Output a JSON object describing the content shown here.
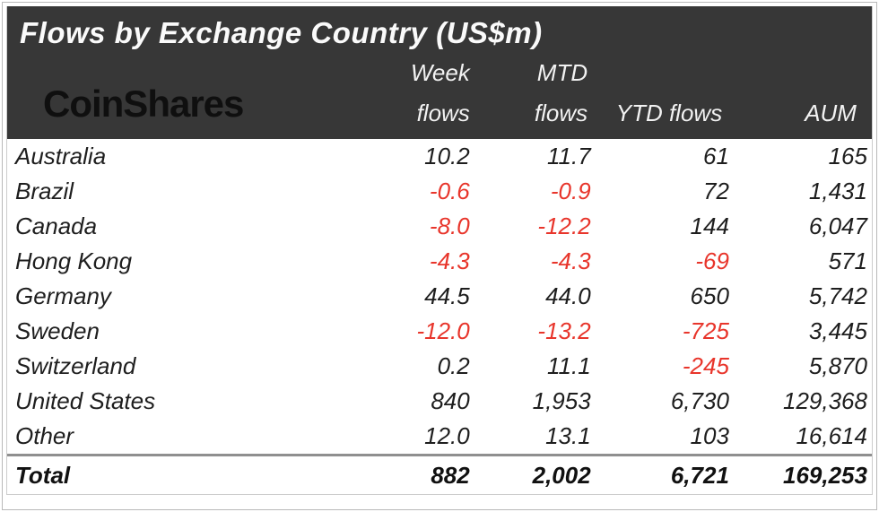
{
  "meta": {
    "title": "Flows by Exchange Country (US$m)",
    "brand": "CoinShares"
  },
  "colors": {
    "header_bg": "#373737",
    "header_text": "#fafafa",
    "logo_text": "#0f0f0f",
    "body_text": "#1e1e1e",
    "negative_text": "#e8352b",
    "total_divider": "#8f8f8f",
    "frame_border": "#b9b9b9"
  },
  "columns": [
    {
      "id": "week",
      "line1": "Week",
      "line2": "flows"
    },
    {
      "id": "mtd",
      "line1": "MTD",
      "line2": "flows"
    },
    {
      "id": "ytd",
      "line1": "",
      "line2": "YTD flows"
    },
    {
      "id": "aum",
      "line1": "",
      "line2": "AUM"
    }
  ],
  "rows": [
    {
      "country": "Australia",
      "week": "10.2",
      "mtd": "11.7",
      "ytd": "61",
      "aum": "165"
    },
    {
      "country": "Brazil",
      "week": "-0.6",
      "mtd": "-0.9",
      "ytd": "72",
      "aum": "1,431"
    },
    {
      "country": "Canada",
      "week": "-8.0",
      "mtd": "-12.2",
      "ytd": "144",
      "aum": "6,047"
    },
    {
      "country": "Hong Kong",
      "week": "-4.3",
      "mtd": "-4.3",
      "ytd": "-69",
      "aum": "571"
    },
    {
      "country": "Germany",
      "week": "44.5",
      "mtd": "44.0",
      "ytd": "650",
      "aum": "5,742"
    },
    {
      "country": "Sweden",
      "week": "-12.0",
      "mtd": "-13.2",
      "ytd": "-725",
      "aum": "3,445"
    },
    {
      "country": "Switzerland",
      "week": "0.2",
      "mtd": "11.1",
      "ytd": "-245",
      "aum": "5,870"
    },
    {
      "country": "United States",
      "week": "840",
      "mtd": "1,953",
      "ytd": "6,730",
      "aum": "129,368"
    },
    {
      "country": "Other",
      "week": "12.0",
      "mtd": "13.1",
      "ytd": "103",
      "aum": "16,614"
    }
  ],
  "total": {
    "label": "Total",
    "week": "882",
    "mtd": "2,002",
    "ytd": "6,721",
    "aum": "169,253"
  },
  "chart_data": {
    "type": "table",
    "title": "Flows by Exchange Country (US$m)",
    "columns": [
      "Week flows",
      "MTD flows",
      "YTD flows",
      "AUM"
    ],
    "rows": [
      {
        "country": "Australia",
        "week_flows": 10.2,
        "mtd_flows": 11.7,
        "ytd_flows": 61,
        "aum": 165
      },
      {
        "country": "Brazil",
        "week_flows": -0.6,
        "mtd_flows": -0.9,
        "ytd_flows": 72,
        "aum": 1431
      },
      {
        "country": "Canada",
        "week_flows": -8.0,
        "mtd_flows": -12.2,
        "ytd_flows": 144,
        "aum": 6047
      },
      {
        "country": "Hong Kong",
        "week_flows": -4.3,
        "mtd_flows": -4.3,
        "ytd_flows": -69,
        "aum": 571
      },
      {
        "country": "Germany",
        "week_flows": 44.5,
        "mtd_flows": 44.0,
        "ytd_flows": 650,
        "aum": 5742
      },
      {
        "country": "Sweden",
        "week_flows": -12.0,
        "mtd_flows": -13.2,
        "ytd_flows": -725,
        "aum": 3445
      },
      {
        "country": "Switzerland",
        "week_flows": 0.2,
        "mtd_flows": 11.1,
        "ytd_flows": -245,
        "aum": 5870
      },
      {
        "country": "United States",
        "week_flows": 840,
        "mtd_flows": 1953,
        "ytd_flows": 6730,
        "aum": 129368
      },
      {
        "country": "Other",
        "week_flows": 12.0,
        "mtd_flows": 13.1,
        "ytd_flows": 103,
        "aum": 16614
      },
      {
        "country": "Total",
        "week_flows": 882,
        "mtd_flows": 2002,
        "ytd_flows": 6721,
        "aum": 169253
      }
    ],
    "notes": "Negative values rendered in red; Total row bold with gray divider above."
  }
}
